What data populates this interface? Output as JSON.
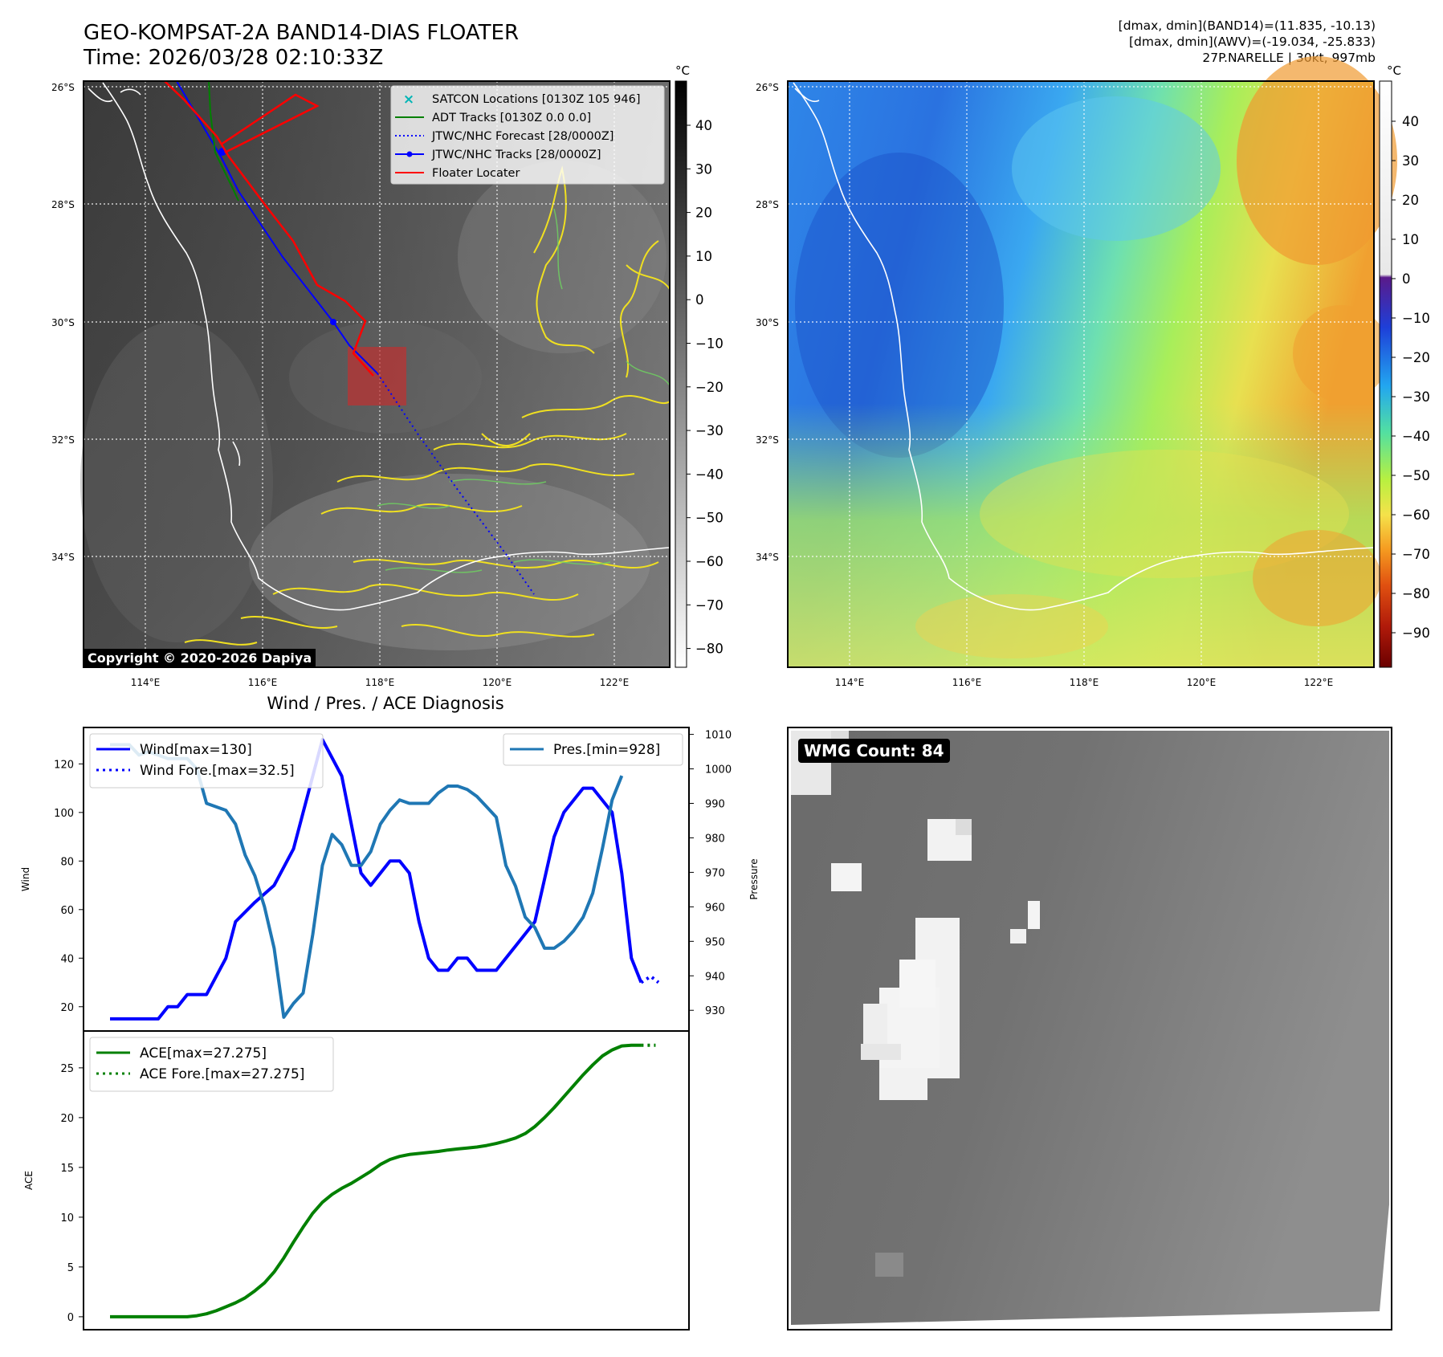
{
  "header": {
    "title_line1": "GEO-KOMPSAT-2A BAND14-DIAS FLOATER",
    "title_line2": "Time: 2026/03/28 02:10:33Z",
    "info_line1": "[dmax, dmin](BAND14)=(11.835, -10.13)",
    "info_line2": "[dmax, dmin](AWV)=(-19.034, -25.833)",
    "info_line3": "27P.NARELLE | 30kt, 997mb"
  },
  "map_left": {
    "copyright": "Copyright © 2020-2026 Dapiya",
    "lat_labels": [
      "26°S",
      "28°S",
      "30°S",
      "32°S",
      "34°S"
    ],
    "lon_labels": [
      "114°E",
      "116°E",
      "118°E",
      "120°E",
      "122°E"
    ],
    "colorbar_unit": "°C",
    "colorbar_ticks": [
      "40",
      "30",
      "20",
      "10",
      "0",
      "−10",
      "−20",
      "−30",
      "−40",
      "−50",
      "−60",
      "−70",
      "−80"
    ],
    "legend": [
      {
        "label": "SATCON Locations [0130Z 105 946]",
        "color": "#00b5b5",
        "style": "x"
      },
      {
        "label": "ADT Tracks [0130Z 0.0 0.0]",
        "color": "#008000",
        "style": "line"
      },
      {
        "label": "JTWC/NHC Forecast [28/0000Z]",
        "color": "#0000ff",
        "style": "dotted"
      },
      {
        "label": "JTWC/NHC Tracks [28/0000Z]",
        "color": "#0000ff",
        "style": "line-dot"
      },
      {
        "label": "Floater Locater",
        "color": "#ff0000",
        "style": "line"
      }
    ]
  },
  "map_right": {
    "lat_labels": [
      "26°S",
      "28°S",
      "30°S",
      "32°S",
      "34°S"
    ],
    "lon_labels": [
      "114°E",
      "116°E",
      "118°E",
      "120°E",
      "122°E"
    ],
    "colorbar_unit": "°C",
    "colorbar_ticks": [
      "40",
      "30",
      "20",
      "10",
      "0",
      "−10",
      "−20",
      "−30",
      "−40",
      "−50",
      "−60",
      "−70",
      "−80",
      "−90"
    ]
  },
  "diagnosis": {
    "title": "Wind / Pres. / ACE Diagnosis",
    "wmg_label": "WMG Count: 84"
  },
  "chart_data": [
    {
      "type": "line",
      "ylabel": "Wind",
      "ylabel2": "Pressure",
      "ylim": [
        10,
        135
      ],
      "ylim2": [
        924,
        1012
      ],
      "yticks": [
        20,
        40,
        60,
        80,
        100,
        120
      ],
      "yticks2": [
        930,
        940,
        950,
        960,
        970,
        980,
        990,
        1000,
        1010
      ],
      "grid": false,
      "legend_left": [
        "Wind[max=130]",
        "Wind Fore.[max=32.5]"
      ],
      "legend_right": [
        "Pres.[min=928]"
      ],
      "series": [
        {
          "name": "Wind[max=130]",
          "color": "#0000ff",
          "style": "solid",
          "axis": "left",
          "values": [
            [
              0,
              15
            ],
            [
              3,
              15
            ],
            [
              5,
              15
            ],
            [
              6,
              20
            ],
            [
              7,
              20
            ],
            [
              8,
              25
            ],
            [
              10,
              25
            ],
            [
              12,
              40
            ],
            [
              13,
              55
            ],
            [
              15,
              63
            ],
            [
              17,
              70
            ],
            [
              19,
              85
            ],
            [
              20,
              100
            ],
            [
              22,
              130
            ],
            [
              24,
              115
            ],
            [
              26,
              75
            ],
            [
              27,
              70
            ],
            [
              29,
              80
            ],
            [
              30,
              80
            ],
            [
              31,
              75
            ],
            [
              32,
              55
            ],
            [
              33,
              40
            ],
            [
              34,
              35
            ],
            [
              35,
              35
            ],
            [
              36,
              40
            ],
            [
              37,
              40
            ],
            [
              38,
              35
            ],
            [
              40,
              35
            ],
            [
              42,
              45
            ],
            [
              44,
              55
            ],
            [
              46,
              90
            ],
            [
              47,
              100
            ],
            [
              49,
              110
            ],
            [
              50,
              110
            ],
            [
              52,
              100
            ],
            [
              53,
              75
            ],
            [
              54,
              40
            ],
            [
              55,
              30
            ]
          ]
        },
        {
          "name": "Wind Fore.[max=32.5]",
          "color": "#0000ff",
          "style": "dotted",
          "axis": "left",
          "values": [
            [
              55,
              30
            ],
            [
              56,
              32.5
            ],
            [
              56.8,
              30
            ]
          ]
        },
        {
          "name": "Pres.[min=928]",
          "color": "#1f77b4",
          "style": "solid",
          "axis": "right",
          "values": [
            [
              0,
              1007
            ],
            [
              2,
              1007
            ],
            [
              3,
              1004
            ],
            [
              4,
              1005
            ],
            [
              6,
              1003
            ],
            [
              8,
              1003
            ],
            [
              9,
              1000
            ],
            [
              10,
              990
            ],
            [
              12,
              988
            ],
            [
              13,
              984
            ],
            [
              14,
              975
            ],
            [
              15,
              969
            ],
            [
              16,
              960
            ],
            [
              17,
              948
            ],
            [
              18,
              928
            ],
            [
              19,
              932
            ],
            [
              20,
              935
            ],
            [
              21,
              952
            ],
            [
              22,
              972
            ],
            [
              23,
              981
            ],
            [
              24,
              978
            ],
            [
              25,
              972
            ],
            [
              26,
              972
            ],
            [
              27,
              976
            ],
            [
              28,
              984
            ],
            [
              29,
              988
            ],
            [
              30,
              991
            ],
            [
              31,
              990
            ],
            [
              32,
              990
            ],
            [
              33,
              990
            ],
            [
              34,
              993
            ],
            [
              35,
              995
            ],
            [
              36,
              995
            ],
            [
              37,
              994
            ],
            [
              38,
              992
            ],
            [
              39,
              989
            ],
            [
              40,
              986
            ],
            [
              41,
              972
            ],
            [
              42,
              966
            ],
            [
              43,
              957
            ],
            [
              44,
              954
            ],
            [
              45,
              948
            ],
            [
              46,
              948
            ],
            [
              47,
              950
            ],
            [
              48,
              953
            ],
            [
              49,
              957
            ],
            [
              50,
              964
            ],
            [
              51,
              977
            ],
            [
              52,
              991
            ],
            [
              53,
              998
            ]
          ]
        }
      ]
    },
    {
      "type": "line",
      "ylabel": "ACE",
      "ylim": [
        -1.3,
        28.7
      ],
      "yticks": [
        0,
        5,
        10,
        15,
        20,
        25
      ],
      "grid": false,
      "legend": [
        "ACE[max=27.275]",
        "ACE Fore.[max=27.275]"
      ],
      "series": [
        {
          "name": "ACE[max=27.275]",
          "color": "#008000",
          "style": "solid",
          "values": [
            [
              0,
              0
            ],
            [
              8,
              0
            ],
            [
              9,
              0.1
            ],
            [
              10,
              0.3
            ],
            [
              11,
              0.6
            ],
            [
              12,
              1.0
            ],
            [
              13,
              1.4
            ],
            [
              14,
              1.9
            ],
            [
              15,
              2.6
            ],
            [
              16,
              3.4
            ],
            [
              17,
              4.5
            ],
            [
              18,
              5.9
            ],
            [
              19,
              7.5
            ],
            [
              20,
              9.0
            ],
            [
              21,
              10.4
            ],
            [
              22,
              11.5
            ],
            [
              23,
              12.3
            ],
            [
              24,
              12.9
            ],
            [
              25,
              13.4
            ],
            [
              26,
              14.0
            ],
            [
              27,
              14.6
            ],
            [
              28,
              15.3
            ],
            [
              29,
              15.8
            ],
            [
              30,
              16.1
            ],
            [
              31,
              16.3
            ],
            [
              32,
              16.4
            ],
            [
              33,
              16.5
            ],
            [
              34,
              16.6
            ],
            [
              35,
              16.75
            ],
            [
              36,
              16.85
            ],
            [
              37,
              16.95
            ],
            [
              38,
              17.05
            ],
            [
              39,
              17.2
            ],
            [
              40,
              17.4
            ],
            [
              41,
              17.65
            ],
            [
              42,
              17.95
            ],
            [
              43,
              18.4
            ],
            [
              44,
              19.1
            ],
            [
              45,
              20.0
            ],
            [
              46,
              21.0
            ],
            [
              47,
              22.1
            ],
            [
              48,
              23.2
            ],
            [
              49,
              24.3
            ],
            [
              50,
              25.3
            ],
            [
              51,
              26.2
            ],
            [
              52,
              26.8
            ],
            [
              53,
              27.2
            ],
            [
              54,
              27.275
            ],
            [
              55,
              27.275
            ]
          ]
        },
        {
          "name": "ACE Fore.[max=27.275]",
          "color": "#008000",
          "style": "dotted",
          "values": [
            [
              55,
              27.275
            ],
            [
              56.5,
              27.275
            ]
          ]
        }
      ]
    }
  ]
}
